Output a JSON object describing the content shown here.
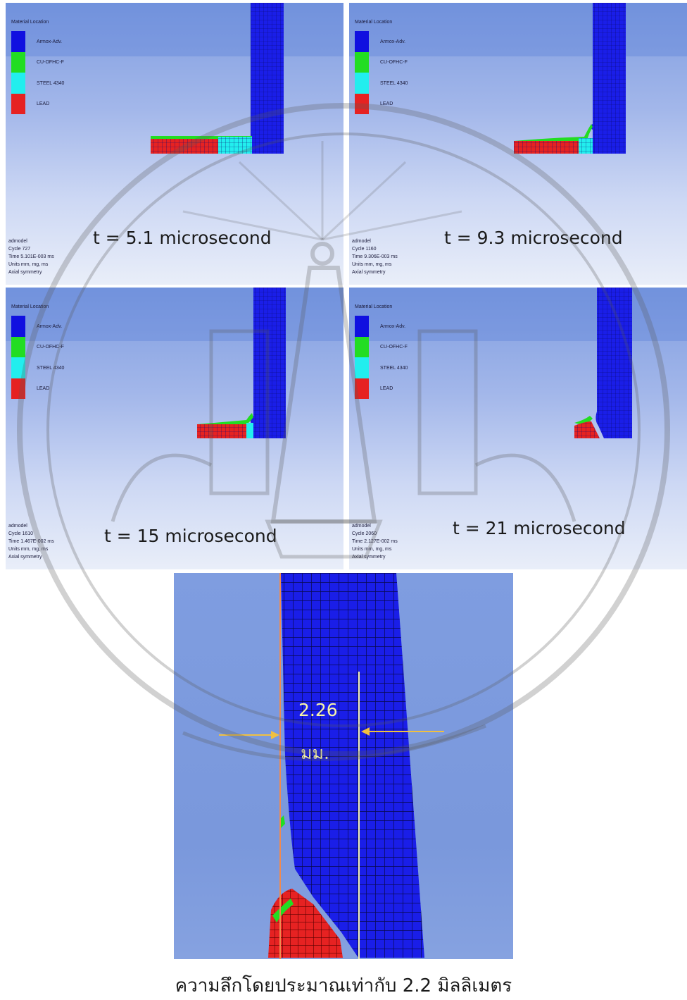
{
  "legend": {
    "title": "Material Location",
    "materials": [
      {
        "label": "Armox-Adv.",
        "color": "#1010e0"
      },
      {
        "label": "CU-OFHC-F",
        "color": "#22dd22"
      },
      {
        "label": "STEEL 4340",
        "color": "#22eeee"
      },
      {
        "label": "LEAD",
        "color": "#e62222"
      }
    ]
  },
  "panels": [
    {
      "time_label": "t = 5.1 microsecond",
      "info": [
        "admodel",
        "Cycle 727",
        "Time 5.101E-003 ms",
        "Units mm, mg, ms",
        "Axial symmetry"
      ]
    },
    {
      "time_label": "t = 9.3 microsecond",
      "info": [
        "admodel",
        "Cycle 1160",
        "Time 9.306E-003 ms",
        "Units mm, mg, ms",
        "Axial symmetry"
      ]
    },
    {
      "time_label": "t = 15 microsecond",
      "info": [
        "admodel",
        "Cycle 1610",
        "Time 1.467E-002 ms",
        "Units mm, mg, ms",
        "Axial symmetry"
      ]
    },
    {
      "time_label": "t = 21 microsecond",
      "info": [
        "admodel",
        "Cycle 2060",
        "Time 2.127E-002 ms",
        "Units mm, mg, ms",
        "Axial symmetry"
      ]
    }
  ],
  "closeup": {
    "measure_value": "2.26",
    "measure_unit": "มม."
  },
  "caption": "ความลึกโดยประมาณเท่ากับ 2.2 มิลลิเมตร",
  "colors": {
    "armor": "#1a1ee8",
    "lead": "#e62222",
    "copper": "#22dd22",
    "steel": "#22eeee",
    "background": "#7f9de0"
  }
}
